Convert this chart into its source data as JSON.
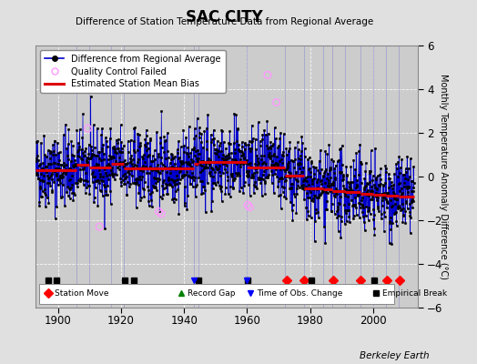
{
  "title": "SAC CITY",
  "subtitle": "Difference of Station Temperature Data from Regional Average",
  "ylabel": "Monthly Temperature Anomaly Difference (°C)",
  "xlim": [
    1893,
    2014
  ],
  "ylim": [
    -6,
    6
  ],
  "yticks": [
    -6,
    -4,
    -2,
    0,
    2,
    4,
    6
  ],
  "xticks": [
    1900,
    1920,
    1940,
    1960,
    1980,
    2000
  ],
  "bg_color": "#e0e0e0",
  "plot_bg_color": "#cccccc",
  "grid_color": "#ffffff",
  "line_color": "#0000cc",
  "marker_color": "#000000",
  "bias_color": "#dd0000",
  "qc_color": "#ff99ff",
  "attribution": "Berkeley Earth",
  "seed": 42,
  "segments": [
    {
      "start": 1893.0,
      "end": 1906.0,
      "bias": 0.3
    },
    {
      "start": 1906.0,
      "end": 1910.0,
      "bias": 0.55
    },
    {
      "start": 1910.0,
      "end": 1917.0,
      "bias": 0.4
    },
    {
      "start": 1917.0,
      "end": 1921.0,
      "bias": 0.6
    },
    {
      "start": 1921.0,
      "end": 1943.0,
      "bias": 0.38
    },
    {
      "start": 1943.0,
      "end": 1944.5,
      "bias": 0.6
    },
    {
      "start": 1944.5,
      "end": 1960.0,
      "bias": 0.65
    },
    {
      "start": 1960.0,
      "end": 1972.0,
      "bias": 0.4
    },
    {
      "start": 1972.0,
      "end": 1978.0,
      "bias": 0.05
    },
    {
      "start": 1978.0,
      "end": 1984.0,
      "bias": -0.55
    },
    {
      "start": 1984.0,
      "end": 1987.0,
      "bias": -0.6
    },
    {
      "start": 1987.0,
      "end": 1991.0,
      "bias": -0.65
    },
    {
      "start": 1991.0,
      "end": 1996.0,
      "bias": -0.72
    },
    {
      "start": 1996.0,
      "end": 2000.0,
      "bias": -0.78
    },
    {
      "start": 2000.0,
      "end": 2004.0,
      "bias": -0.82
    },
    {
      "start": 2004.0,
      "end": 2008.0,
      "bias": -0.88
    },
    {
      "start": 2008.0,
      "end": 2013.0,
      "bias": -0.92
    }
  ],
  "vertical_breaks": [
    1906.0,
    1910.0,
    1917.0,
    1921.0,
    1943.0,
    1944.5,
    1960.0,
    1972.0,
    1978.0,
    1984.0,
    1987.0,
    1991.0,
    1996.0,
    2000.0,
    2004.0,
    2008.0
  ],
  "station_moves": [
    1972.5,
    1978.2,
    1987.3,
    1996.1,
    2004.2,
    2008.5
  ],
  "empirical_breaks": [
    1897.0,
    1899.5,
    1921.3,
    1924.0,
    1944.5,
    1960.2,
    1980.5,
    2000.3
  ],
  "obs_changes": [
    1943.0,
    1960.0
  ],
  "qc_failed_approx": [
    [
      1909.5,
      2.2
    ],
    [
      1913.2,
      -2.3
    ],
    [
      1932.0,
      -1.6
    ],
    [
      1932.8,
      -1.7
    ],
    [
      1960.2,
      -1.3
    ],
    [
      1960.8,
      -1.4
    ],
    [
      1966.5,
      4.65
    ],
    [
      1969.3,
      3.4
    ]
  ],
  "noise_std": 0.85
}
